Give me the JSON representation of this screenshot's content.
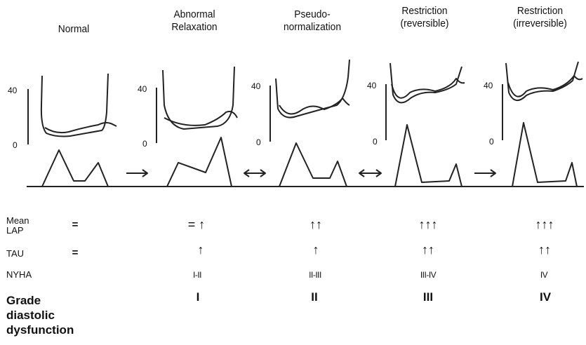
{
  "titles": {
    "normal": "Normal",
    "abnormal_1": "Abnormal",
    "abnormal_2": "Relaxation",
    "pseudo_1": "Pseudo-",
    "pseudo_2": "normalization",
    "restr_rev_1": "Restriction",
    "restr_rev_2": "(reversible)",
    "restr_irr_1": "Restriction",
    "restr_irr_2": "(irreversible)"
  },
  "axis": {
    "top": "40",
    "bottom": "0"
  },
  "rows": {
    "mean_lap_1": "Mean",
    "mean_lap_2": "LAP",
    "tau": "TAU",
    "nyha": "NYHA",
    "grade_1": "Grade",
    "grade_2": "diastolic",
    "grade_3": "dysfunction"
  },
  "values": {
    "lap_normal": "=",
    "lap_abnormal": "= ↑",
    "lap_pseudo": "↑↑",
    "lap_rev": "↑↑↑",
    "lap_irr": "↑↑↑",
    "tau_normal": "=",
    "tau_abnormal": "↑",
    "tau_pseudo": "↑",
    "tau_rev": "↑↑",
    "tau_irr": "↑↑",
    "nyha_abnormal": "I-II",
    "nyha_pseudo": "II-III",
    "nyha_rev": "III-IV",
    "nyha_irr": "IV",
    "grade_abnormal": "I",
    "grade_pseudo": "II",
    "grade_rev": "III",
    "grade_irr": "IV"
  }
}
